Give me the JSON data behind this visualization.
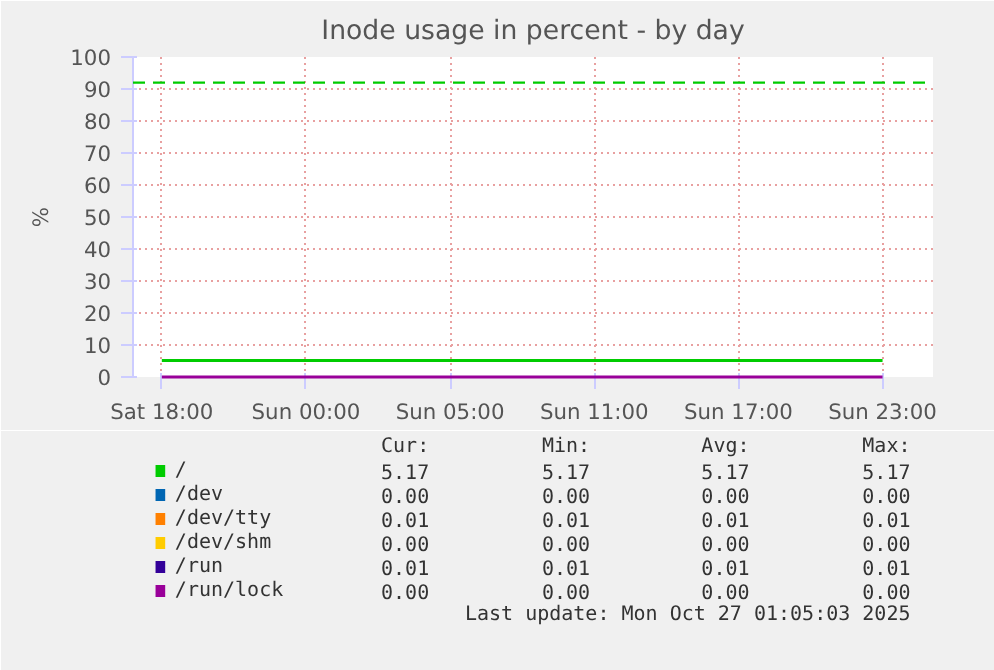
{
  "chart_data": {
    "type": "line",
    "title": "Inode usage in percent - by day",
    "ylabel": "%",
    "categories": [
      "Sat 18:00",
      "Sun 00:00",
      "Sun 05:00",
      "Sun 11:00",
      "Sun 17:00",
      "Sun 23:00"
    ],
    "ylim": [
      0,
      100
    ],
    "yticks": [
      0,
      10,
      20,
      30,
      40,
      50,
      60,
      70,
      80,
      90,
      100
    ],
    "grid": true,
    "legend": "bottom",
    "line_style": "solid",
    "marker": "none",
    "series": [
      {
        "name": "/",
        "color": "#00cc00",
        "values": [
          5.17,
          5.17,
          5.17,
          5.17,
          5.17,
          5.17
        ]
      },
      {
        "name": "/dev",
        "color": "#0066b3",
        "values": [
          null,
          null,
          null,
          null,
          null,
          null
        ]
      },
      {
        "name": "/dev/tty",
        "color": "#ff8000",
        "values": [
          null,
          null,
          null,
          null,
          null,
          null
        ]
      },
      {
        "name": "/dev/shm",
        "color": "#ffcc00",
        "values": [
          null,
          null,
          null,
          null,
          null,
          null
        ]
      },
      {
        "name": "/run",
        "color": "#330099",
        "values": [
          null,
          null,
          null,
          null,
          null,
          null
        ]
      },
      {
        "name": "/run/lock",
        "color": "#990099",
        "values": [
          0.0,
          0.0,
          0.0,
          0.0,
          0.0,
          0.0
        ]
      }
    ],
    "ref_lines": [
      {
        "axis": "y",
        "value": 92,
        "color": "#00cc00",
        "line_style": "dashed"
      }
    ],
    "annotations": [
      "Cur:",
      "Min:",
      "Avg:",
      "Max:",
      "5.17",
      "5.17",
      "5.17",
      "5.17",
      "0.00",
      "0.00",
      "0.00",
      "0.00",
      "0.01",
      "0.01",
      "0.01",
      "0.01",
      "0.00",
      "0.00",
      "0.00",
      "0.00",
      "0.01",
      "0.01",
      "0.01",
      "0.01",
      "0.00",
      "0.00",
      "0.00",
      "0.00",
      "Last update: Mon Oct 27 01:05:03 2025"
    ]
  }
}
